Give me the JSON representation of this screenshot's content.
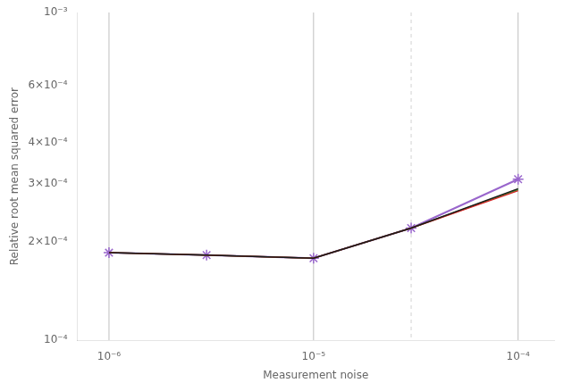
{
  "chart_data": {
    "type": "line",
    "x_label": "Measurement noise",
    "y_label": "Relative root mean squared error",
    "x": [
      1e-06,
      3e-06,
      1e-05,
      3e-05,
      0.0001
    ],
    "series": [
      {
        "color": "#1a1a1a",
        "values": [
          0.000185,
          0.000182,
          0.000178,
          0.00022,
          0.00029
        ]
      },
      {
        "color": "#d62728",
        "values": [
          0.000185,
          0.000182,
          0.000178,
          0.00022,
          0.000286
        ]
      },
      {
        "color": "#2ca02c",
        "values": [
          0.000185,
          0.000182,
          0.000178,
          0.00022,
          0.000288
        ]
      },
      {
        "color": "#9966cc",
        "marker": "star",
        "values": [
          0.000185,
          0.000182,
          0.000178,
          0.00022,
          0.00031
        ]
      }
    ],
    "log": true,
    "xlim": [
      7e-07,
      0.00015
    ],
    "ylim": [
      0.0001,
      0.001
    ],
    "xticks": [
      {
        "value": 1e-06,
        "label": "10⁻⁶"
      },
      {
        "value": 1e-05,
        "label": "10⁻⁵"
      },
      {
        "value": 0.0001,
        "label": "10⁻⁴"
      }
    ],
    "yticks": [
      {
        "value": 0.0001,
        "label": "10⁻⁴"
      },
      {
        "value": 0.0002,
        "label": "2×10⁻⁴"
      },
      {
        "value": 0.0003,
        "label": "3×10⁻⁴"
      },
      {
        "value": 0.0004,
        "label": "4×10⁻⁴"
      },
      {
        "value": 0.0006,
        "label": "6×10⁻⁴"
      },
      {
        "value": 0.001,
        "label": "10⁻³"
      }
    ],
    "vlines": [
      {
        "x": 1e-06,
        "line_style": "solid"
      },
      {
        "x": 1e-05,
        "line_style": "solid"
      },
      {
        "x": 0.0001,
        "line_style": "solid"
      },
      {
        "x": 3e-05,
        "line_style": "dashed"
      }
    ],
    "grid": false
  }
}
